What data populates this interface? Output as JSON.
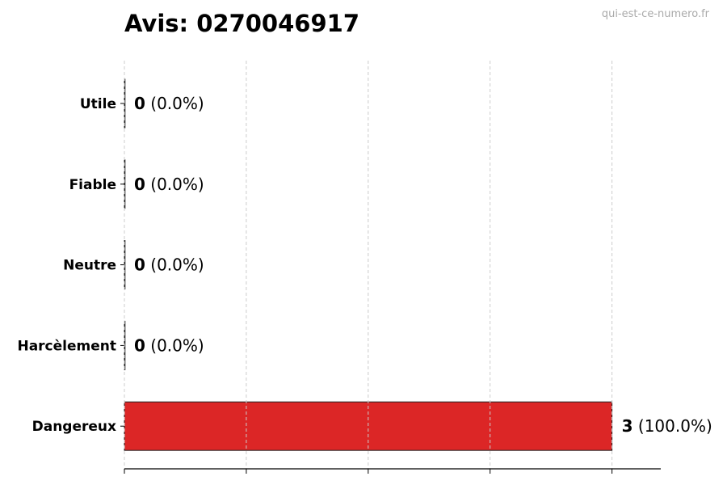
{
  "watermark": "qui-est-ce-numero.fr",
  "chart_data": {
    "type": "bar",
    "orientation": "horizontal",
    "title": "Avis: 0270046917",
    "categories": [
      "Utile",
      "Fiable",
      "Neutre",
      "Harcèlement",
      "Dangereux"
    ],
    "values": [
      0,
      0,
      0,
      0,
      3
    ],
    "labels": [
      {
        "count": "0",
        "pct": "(0.0%)"
      },
      {
        "count": "0",
        "pct": "(0.0%)"
      },
      {
        "count": "0",
        "pct": "(0.0%)"
      },
      {
        "count": "0",
        "pct": "(0.0%)"
      },
      {
        "count": "3",
        "pct": "(100.0%)"
      }
    ],
    "colors": [
      "#22c55e",
      "#3b82f6",
      "#9ca3af",
      "#f97316",
      "#dc2626"
    ],
    "xlim": [
      0,
      3.3
    ],
    "xticks": [
      0,
      0.75,
      1.5,
      2.25,
      3
    ],
    "grid": "x, dashed",
    "xlabel": "",
    "ylabel": ""
  }
}
